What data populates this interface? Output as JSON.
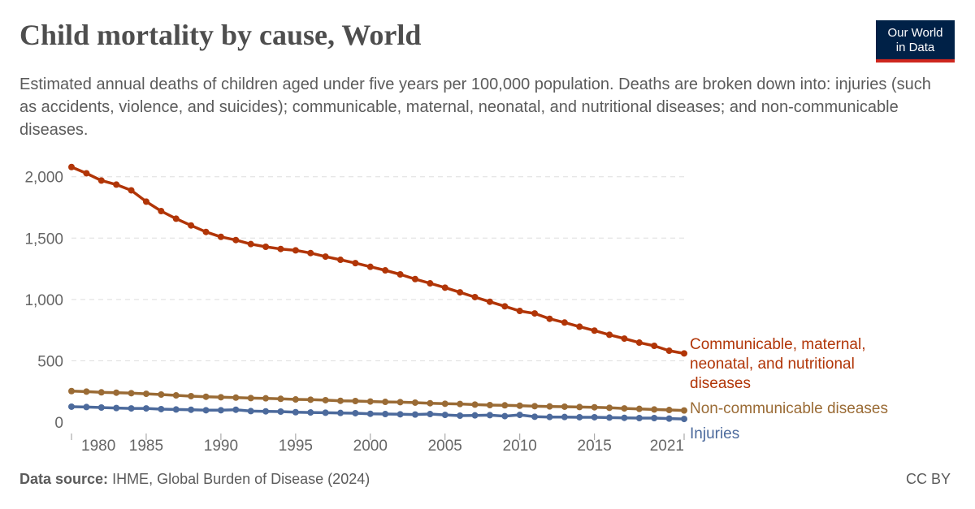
{
  "header": {
    "title": "Child mortality by cause, World",
    "subtitle": "Estimated annual deaths of children aged under five years per 100,000 population. Deaths are broken down into: injuries (such as accidents, violence, and suicides); communicable, maternal, neonatal, and nutritional diseases; and non-communicable diseases.",
    "logo_line1": "Our World",
    "logo_line2": "in Data"
  },
  "footer": {
    "source_label": "Data source:",
    "source_text": "IHME, Global Burden of Disease (2024)",
    "license": "CC BY"
  },
  "chart_data": {
    "type": "line",
    "title": "Child mortality by cause, World",
    "xlabel": "",
    "ylabel": "",
    "xlim": [
      1980,
      2021
    ],
    "ylim": [
      0,
      2000
    ],
    "grid": true,
    "legend": "right (inline labels at line ends)",
    "x_ticks": [
      "1980",
      "1985",
      "1990",
      "1995",
      "2000",
      "2005",
      "2010",
      "2015",
      "2021"
    ],
    "y_ticks": [
      "0",
      "500",
      "1,000",
      "1,500",
      "2,000"
    ],
    "x": [
      1980,
      1981,
      1982,
      1983,
      1984,
      1985,
      1986,
      1987,
      1988,
      1989,
      1990,
      1991,
      1992,
      1993,
      1994,
      1995,
      1996,
      1997,
      1998,
      1999,
      2000,
      2001,
      2002,
      2003,
      2004,
      2005,
      2006,
      2007,
      2008,
      2009,
      2010,
      2011,
      2012,
      2013,
      2014,
      2015,
      2016,
      2017,
      2018,
      2019,
      2020,
      2021
    ],
    "series": [
      {
        "name": "Communicable, maternal, neonatal, and nutritional diseases",
        "label_lines": [
          "Communicable, maternal,",
          "neonatal, and nutritional",
          "diseases"
        ],
        "color": "#b13507",
        "values": [
          2079,
          2028,
          1969,
          1936,
          1889,
          1797,
          1720,
          1658,
          1603,
          1550,
          1510,
          1484,
          1451,
          1429,
          1411,
          1400,
          1378,
          1349,
          1323,
          1296,
          1266,
          1237,
          1204,
          1166,
          1131,
          1096,
          1058,
          1019,
          981,
          944,
          906,
          886,
          842,
          812,
          778,
          746,
          712,
          681,
          648,
          622,
          582,
          560
        ]
      },
      {
        "name": "Non-communicable diseases",
        "label_lines": [
          "Non-communicable diseases"
        ],
        "color": "#9a6b35",
        "values": [
          253,
          249,
          243,
          240,
          236,
          231,
          225,
          218,
          212,
          207,
          203,
          200,
          196,
          194,
          190,
          185,
          183,
          179,
          174,
          172,
          168,
          165,
          163,
          159,
          154,
          150,
          148,
          143,
          139,
          137,
          134,
          130,
          128,
          126,
          123,
          121,
          117,
          112,
          108,
          103,
          99,
          95
        ]
      },
      {
        "name": "Injuries",
        "label_lines": [
          "Injuries"
        ],
        "color": "#4c6a9c",
        "values": [
          126,
          123,
          119,
          115,
          112,
          112,
          106,
          103,
          101,
          97,
          97,
          101,
          90,
          88,
          86,
          81,
          79,
          77,
          75,
          73,
          68,
          66,
          64,
          62,
          66,
          59,
          53,
          55,
          57,
          49,
          59,
          44,
          42,
          42,
          40,
          40,
          37,
          35,
          33,
          33,
          29,
          26
        ]
      }
    ]
  }
}
